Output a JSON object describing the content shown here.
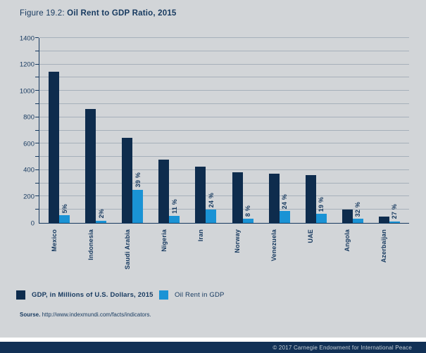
{
  "title": {
    "prefix": "Figure 19.2: ",
    "main": "Oil Rent to GDP Ratio, 2015"
  },
  "chart_data": {
    "type": "bar",
    "categories": [
      "Mexico",
      "Indonesia",
      "Saudi Arabia",
      "Nigeria",
      "Iran",
      "Norway",
      "Venezuela",
      "UAE",
      "Angola",
      "Azerbaijan"
    ],
    "series": [
      {
        "name": "GDP, in Millions of U.S. Dollars, 2015",
        "color": "#0e2c4d",
        "values": [
          1143,
          860,
          646,
          481,
          425,
          386,
          371,
          362,
          100,
          50
        ]
      },
      {
        "name": "Oil Rent in GDP",
        "color": "#1a93d5",
        "values": [
          57,
          17,
          252,
          53,
          102,
          31,
          89,
          69,
          32,
          13
        ],
        "labels": [
          "5%",
          "2%",
          "39 %",
          "11 %",
          "24 %",
          "8 %",
          "24 %",
          "19 %",
          "32 %",
          "27 %"
        ]
      }
    ],
    "ylim": [
      0,
      1400
    ],
    "ytick_step": 200,
    "grid_step": 100,
    "grid": true,
    "ytick_labels": [
      "0",
      "200",
      "400",
      "600",
      "800",
      "1000",
      "1200",
      "1400"
    ],
    "legend_position": "bottom"
  },
  "legend": {
    "items": [
      {
        "label": "GDP, in Millions of U.S. Dollars, 2015",
        "color": "#0e2c4d"
      },
      {
        "label": "Oil Rent in GDP",
        "color": "#1a93d5"
      }
    ]
  },
  "source": {
    "label": "Sourse.",
    "url": "http://www.indexmundi.com/facts/indicators."
  },
  "footer": {
    "copyright": "© 2017 Carnegie Endowment for International Peace"
  },
  "colors": {
    "panel_background": "#d2d5d8",
    "text_navy": "#16395f",
    "gridline": "#a6b0ba",
    "gdp_bar": "#0e2c4d",
    "oil_bar": "#1a93d5",
    "footer_background": "#113055",
    "footer_text": "#c6cfd6"
  }
}
